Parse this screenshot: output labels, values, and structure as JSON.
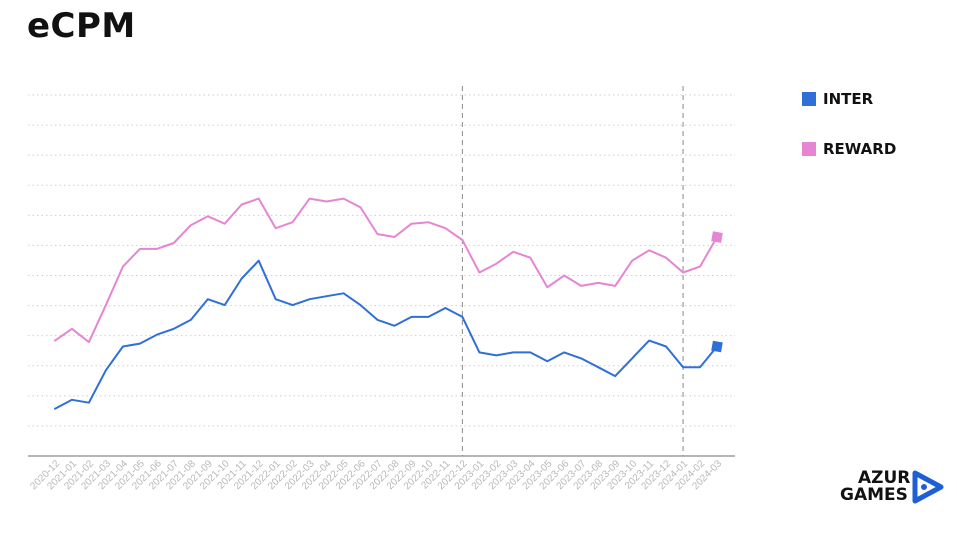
{
  "chart_data": {
    "type": "line",
    "title": "eCPM",
    "xlabel": "",
    "ylabel": "",
    "categories": [
      "2020-12",
      "2021-01",
      "2021-02",
      "2021-03",
      "2021-04",
      "2021-05",
      "2021-06",
      "2021-07",
      "2021-08",
      "2021-09",
      "2021-10",
      "2021-11",
      "2021-12",
      "2022-01",
      "2022-02",
      "2022-03",
      "2022-04",
      "2022-05",
      "2022-06",
      "2022-07",
      "2022-08",
      "2022-09",
      "2022-10",
      "2022-11",
      "2022-12",
      "2023-01",
      "2023-02",
      "2023-03",
      "2023-04",
      "2023-05",
      "2023-06",
      "2023-07",
      "2023-08",
      "2023-09",
      "2023-10",
      "2023-11",
      "2023-12",
      "2024-01",
      "2024-02",
      "2024-03"
    ],
    "ylim": [
      0,
      12.2
    ],
    "grid": true,
    "vlines": [
      "2022-12",
      "2024-01"
    ],
    "legend_position": "right",
    "series": [
      {
        "name": "INTER",
        "color": "#2f6fd8",
        "values": [
          1.6,
          1.9,
          1.8,
          2.9,
          3.7,
          3.8,
          4.1,
          4.3,
          4.6,
          5.3,
          5.1,
          6.0,
          6.6,
          5.3,
          5.1,
          5.3,
          5.4,
          5.5,
          5.1,
          4.6,
          4.4,
          4.7,
          4.7,
          5.0,
          4.7,
          3.5,
          3.4,
          3.5,
          3.5,
          3.2,
          3.5,
          3.3,
          3.0,
          2.7,
          3.3,
          3.9,
          3.7,
          3.0,
          3.0,
          3.7
        ]
      },
      {
        "name": "REWARD",
        "color": "#e585d4",
        "values": [
          3.9,
          4.3,
          3.85,
          5.1,
          6.4,
          7.0,
          7.0,
          7.2,
          7.8,
          8.1,
          7.85,
          8.5,
          8.7,
          7.7,
          7.9,
          8.7,
          8.6,
          8.7,
          8.4,
          7.5,
          7.4,
          7.85,
          7.9,
          7.7,
          7.3,
          6.2,
          6.5,
          6.9,
          6.7,
          5.7,
          6.1,
          5.75,
          5.85,
          5.75,
          6.6,
          6.95,
          6.7,
          6.2,
          6.4,
          7.4
        ]
      }
    ]
  },
  "logo": {
    "line1": "AZUR",
    "line2": "GAMES"
  }
}
